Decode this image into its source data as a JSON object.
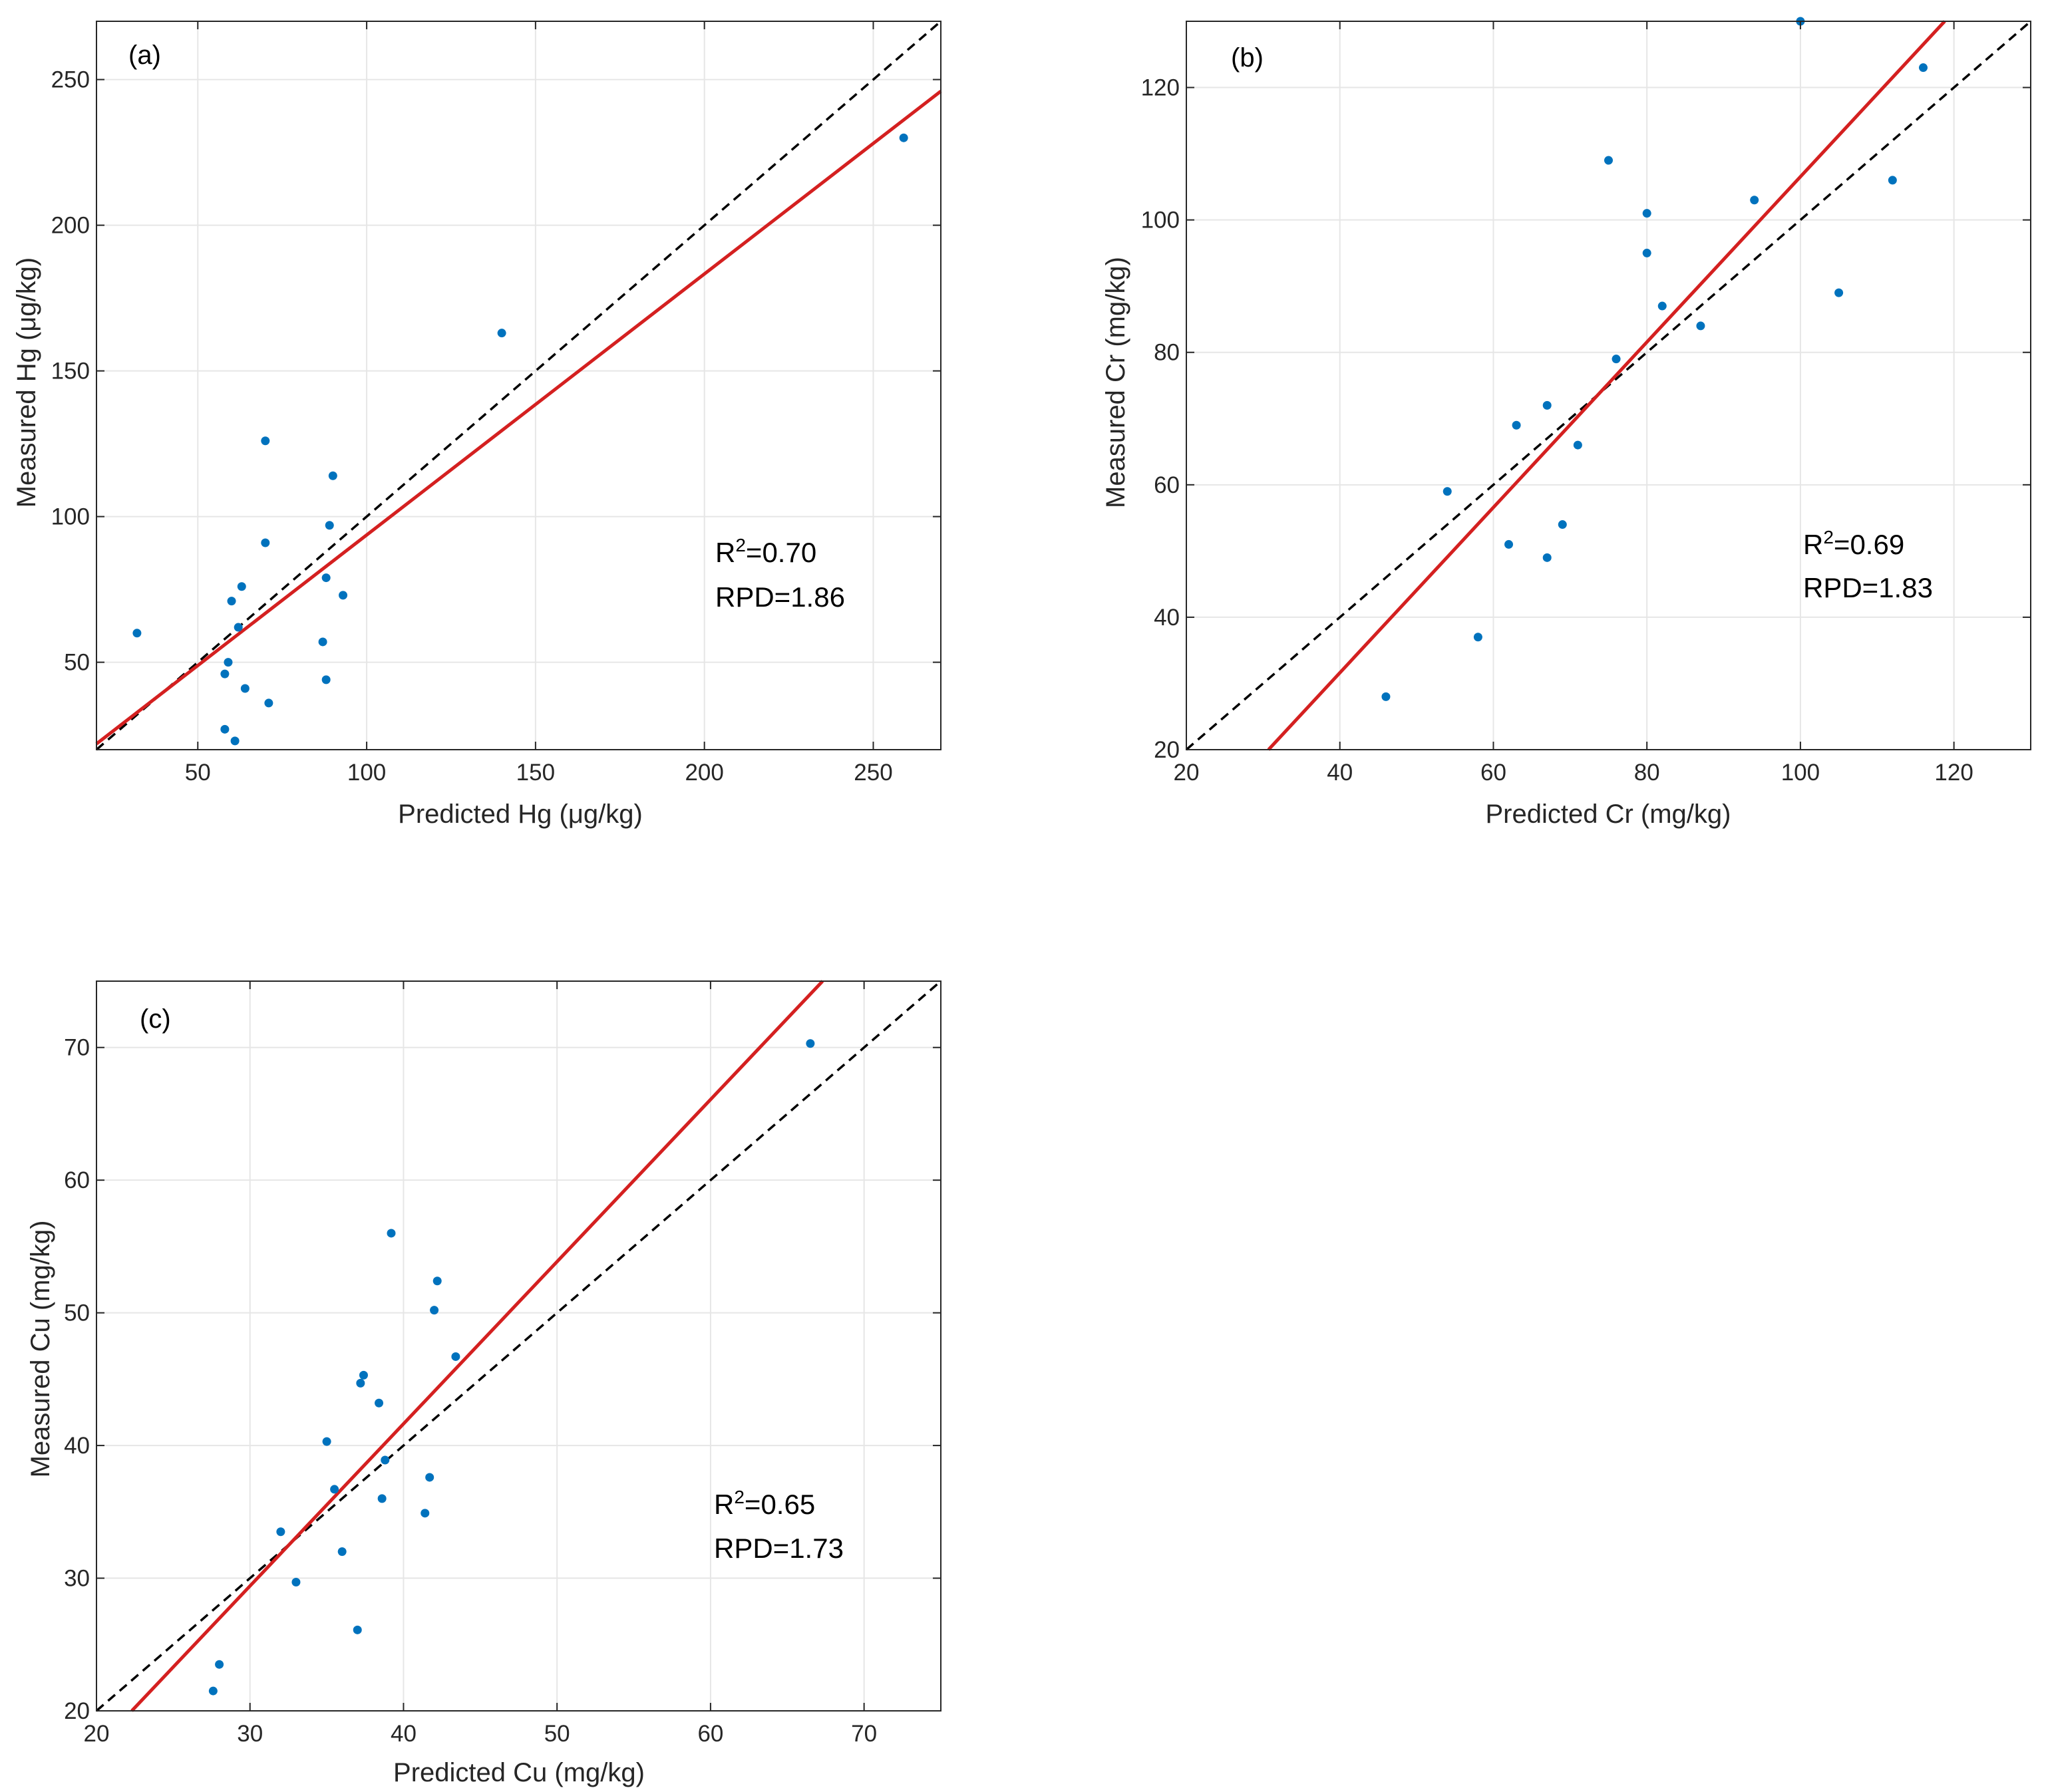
{
  "figure": {
    "background": "#ffffff"
  },
  "style": {
    "point_color": "#0072bd",
    "fit_color": "#d42020",
    "identity_color": "#000000",
    "grid_color": "#e6e6e6",
    "axis_color": "#262626"
  },
  "chart_data": [
    {
      "id": "a",
      "type": "scatter",
      "panel_label": "(a)",
      "xlabel": "Predicted Hg (μg/kg)",
      "ylabel": "Measured Hg (μg/kg)",
      "xlim": [
        20,
        270
      ],
      "ylim": [
        20,
        270
      ],
      "xticks": [
        50,
        100,
        150,
        200,
        250
      ],
      "yticks": [
        50,
        100,
        150,
        200,
        250
      ],
      "xtick_labels": [
        "50",
        "100",
        "150",
        "200",
        "250"
      ],
      "ytick_labels": [
        "50",
        "100",
        "150",
        "200",
        "250"
      ],
      "grid": true,
      "points": [
        [
          32,
          60
        ],
        [
          58,
          46
        ],
        [
          59,
          50
        ],
        [
          60,
          71
        ],
        [
          62,
          62
        ],
        [
          63,
          76
        ],
        [
          64,
          41
        ],
        [
          58,
          27
        ],
        [
          61,
          23
        ],
        [
          70,
          91
        ],
        [
          71,
          36
        ],
        [
          70,
          126
        ],
        [
          87,
          57
        ],
        [
          88,
          79
        ],
        [
          88,
          44
        ],
        [
          89,
          97
        ],
        [
          90,
          114
        ],
        [
          93,
          73
        ],
        [
          140,
          163
        ],
        [
          259,
          230
        ]
      ],
      "fit_line": [
        [
          20,
          22
        ],
        [
          270,
          246
        ]
      ],
      "identity_line": [
        [
          20,
          20
        ],
        [
          270,
          270
        ]
      ],
      "stats": {
        "r2_prefix": "R",
        "r2_sup": "2",
        "r2_value": "=0.70",
        "rpd": "RPD=1.86"
      }
    },
    {
      "id": "b",
      "type": "scatter",
      "panel_label": "(b)",
      "xlabel": "Predicted Cr (mg/kg)",
      "ylabel": "Measured Cr (mg/kg)",
      "xlim": [
        20,
        130
      ],
      "ylim": [
        20,
        130
      ],
      "xticks": [
        20,
        40,
        60,
        80,
        100,
        120
      ],
      "yticks": [
        20,
        40,
        60,
        80,
        100,
        120
      ],
      "xtick_labels": [
        "20",
        "40",
        "60",
        "80",
        "100",
        "120"
      ],
      "ytick_labels": [
        "20",
        "40",
        "60",
        "80",
        "100",
        "120"
      ],
      "grid": true,
      "points": [
        [
          46,
          28
        ],
        [
          54,
          59
        ],
        [
          58,
          37
        ],
        [
          62,
          51
        ],
        [
          63,
          69
        ],
        [
          67,
          72
        ],
        [
          67,
          49
        ],
        [
          69,
          54
        ],
        [
          71,
          66
        ],
        [
          75,
          109
        ],
        [
          76,
          79
        ],
        [
          80,
          101
        ],
        [
          80,
          95
        ],
        [
          82,
          87
        ],
        [
          87,
          84
        ],
        [
          94,
          103
        ],
        [
          100,
          130
        ],
        [
          105,
          89
        ],
        [
          112,
          106
        ],
        [
          116,
          123
        ]
      ],
      "fit_line": [
        [
          30.7,
          20
        ],
        [
          118.8,
          130
        ]
      ],
      "identity_line": [
        [
          20,
          20
        ],
        [
          130,
          130
        ]
      ],
      "stats": {
        "r2_prefix": "R",
        "r2_sup": "2",
        "r2_value": "=0.69",
        "rpd": "RPD=1.83"
      }
    },
    {
      "id": "c",
      "type": "scatter",
      "panel_label": "(c)",
      "xlabel": "Predicted Cu (mg/kg)",
      "ylabel": "Measured Cu (mg/kg)",
      "xlim": [
        20,
        75
      ],
      "ylim": [
        20,
        75
      ],
      "xticks": [
        20,
        30,
        40,
        50,
        60,
        70
      ],
      "yticks": [
        20,
        30,
        40,
        50,
        60,
        70
      ],
      "xtick_labels": [
        "20",
        "30",
        "40",
        "50",
        "60",
        "70"
      ],
      "ytick_labels": [
        "20",
        "30",
        "40",
        "50",
        "60",
        "70"
      ],
      "grid": true,
      "points": [
        [
          27.6,
          21.5
        ],
        [
          28,
          23.5
        ],
        [
          32,
          33.5
        ],
        [
          33,
          29.7
        ],
        [
          35,
          40.3
        ],
        [
          35.5,
          36.7
        ],
        [
          36,
          32
        ],
        [
          37,
          26.1
        ],
        [
          37.2,
          44.7
        ],
        [
          37.4,
          45.3
        ],
        [
          38.4,
          43.2
        ],
        [
          38.6,
          36
        ],
        [
          38.8,
          38.9
        ],
        [
          39.2,
          56
        ],
        [
          41.4,
          34.9
        ],
        [
          41.7,
          37.6
        ],
        [
          42,
          50.2
        ],
        [
          42.2,
          52.4
        ],
        [
          43.4,
          46.7
        ],
        [
          66.5,
          70.3
        ]
      ],
      "fit_line": [
        [
          22.3,
          20
        ],
        [
          67.3,
          75
        ]
      ],
      "identity_line": [
        [
          20,
          20
        ],
        [
          75,
          75
        ]
      ],
      "stats": {
        "r2_prefix": "R",
        "r2_sup": "2",
        "r2_value": "=0.65",
        "rpd": "RPD=1.73"
      }
    }
  ]
}
